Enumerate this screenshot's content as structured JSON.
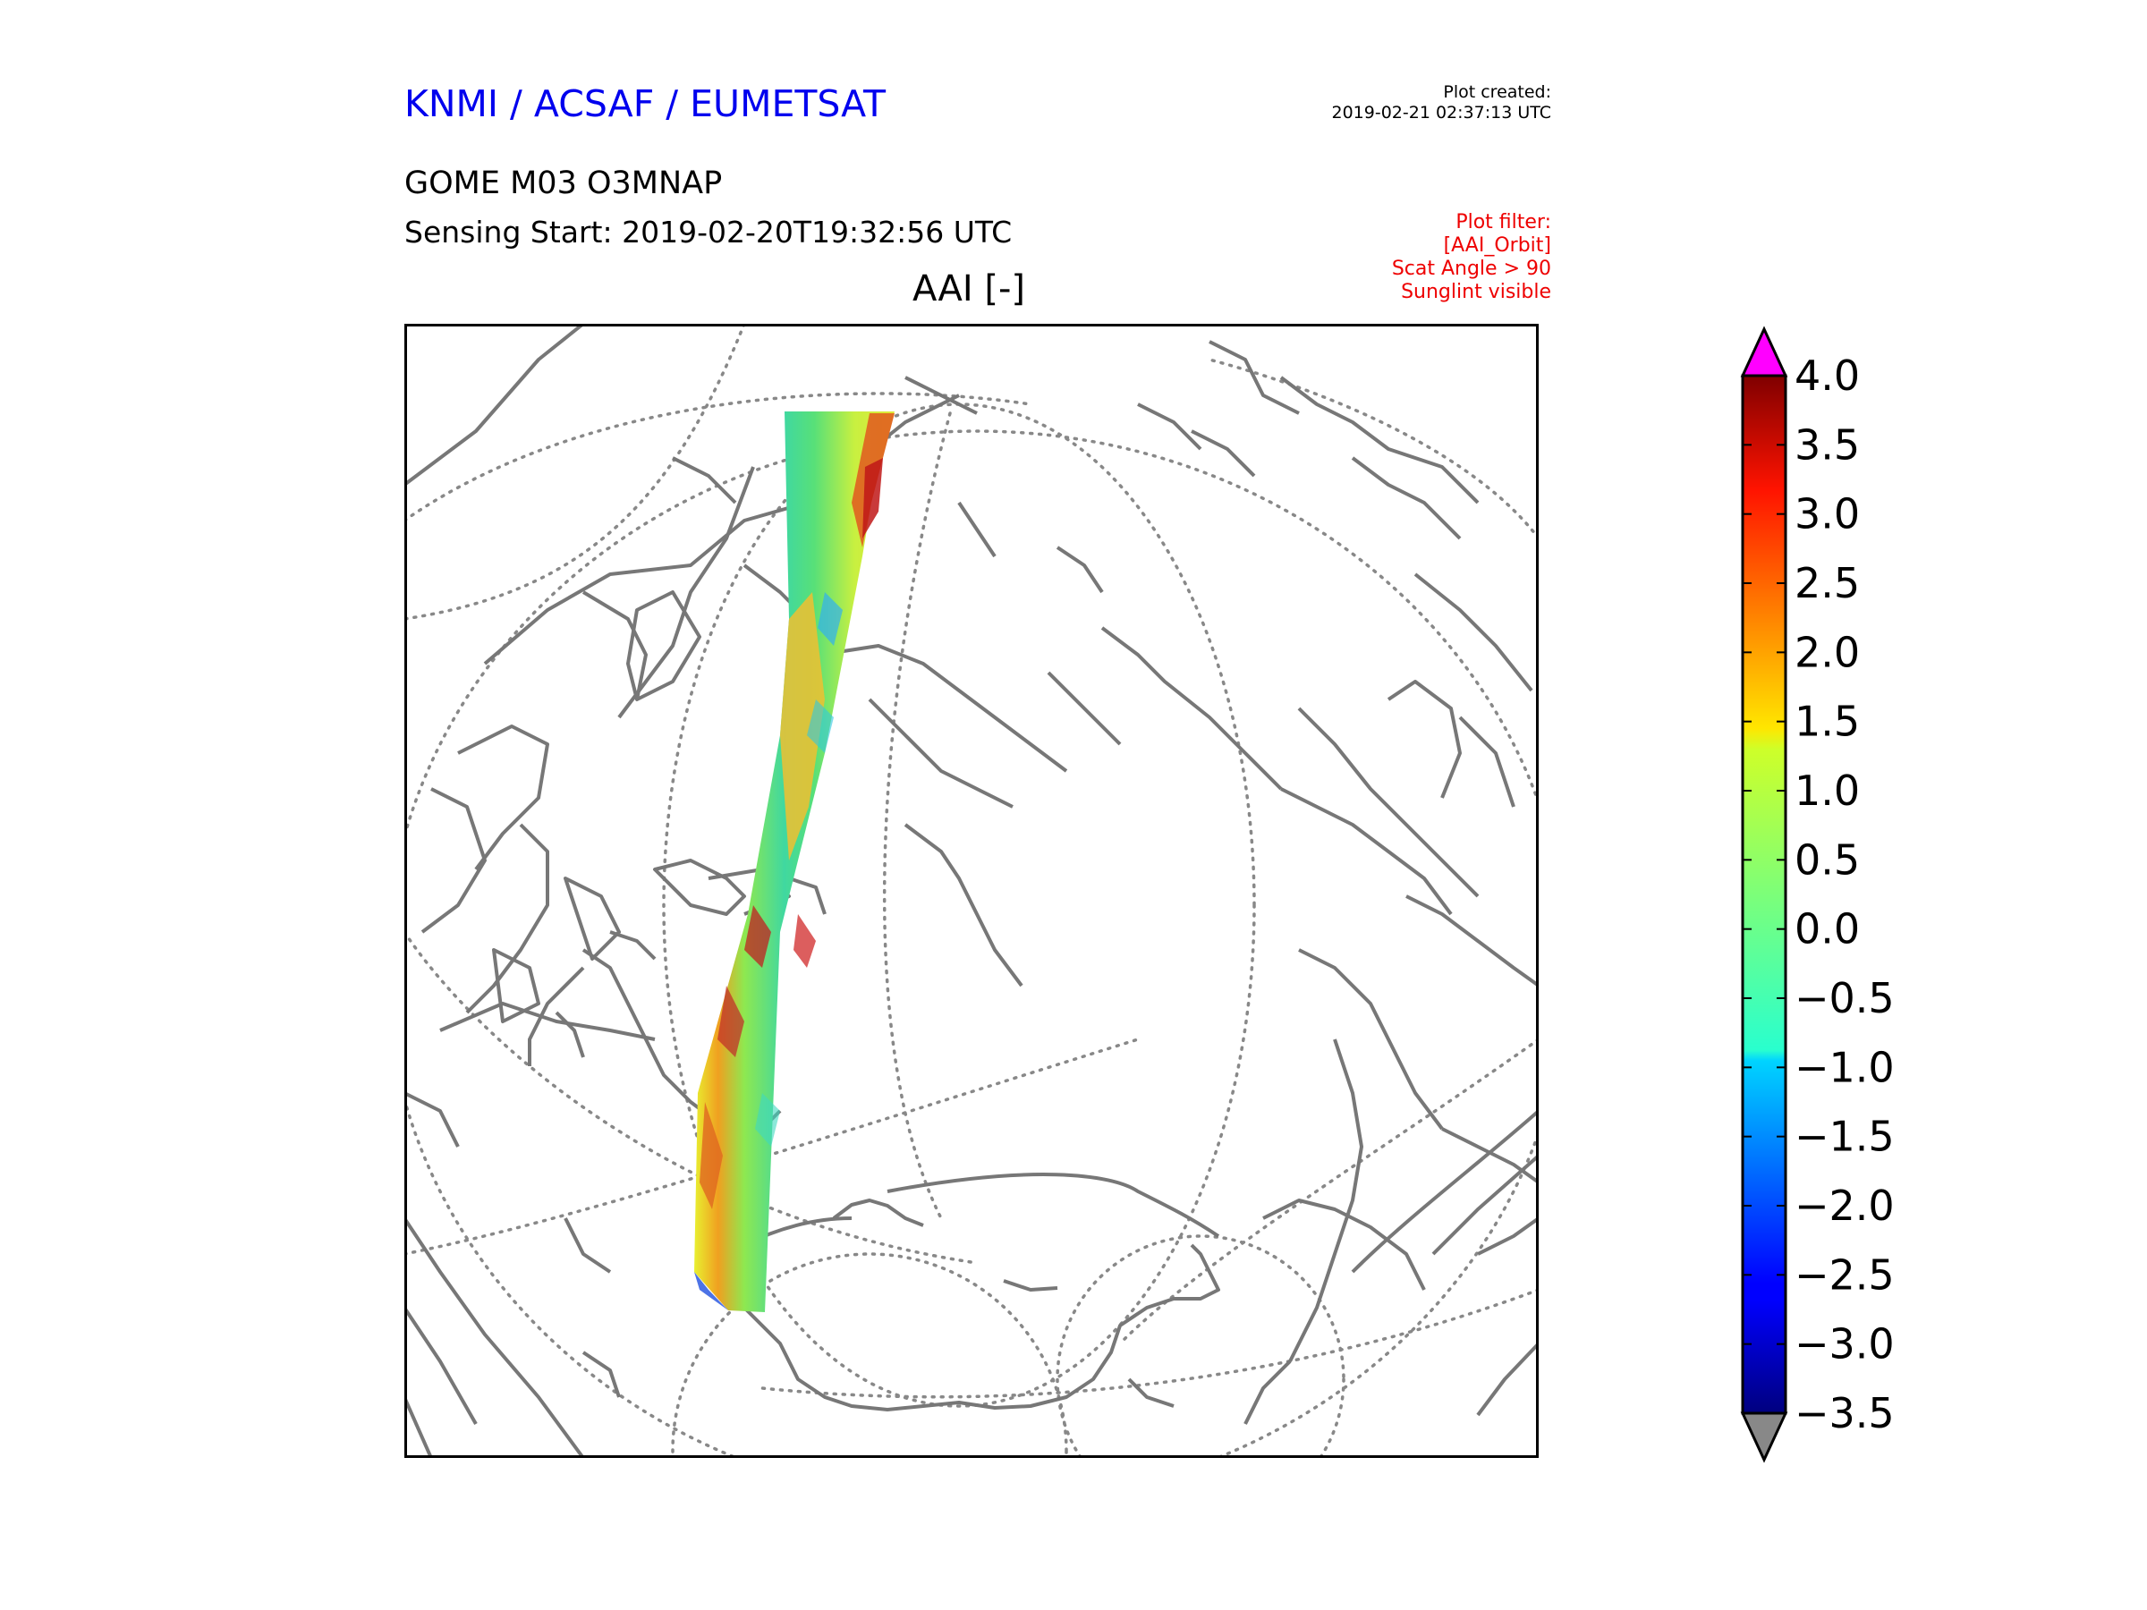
{
  "header": {
    "organization": "KNMI / ACSAF / EUMETSAT",
    "plot_created_label": "Plot created:",
    "plot_created_value": "2019-02-21 02:37:13 UTC",
    "product": "GOME M03 O3MNAP",
    "sensing_start": "Sensing Start: 2019-02-20T19:32:56 UTC",
    "filter_lines": [
      "Plot filter:",
      "[AAI_Orbit]",
      "Scat Angle > 90",
      "Sunglint visible"
    ]
  },
  "plot_title": "AAI [-]",
  "colors": {
    "org": "#0000ee",
    "filter": "#ee0000",
    "coast": "#777777",
    "grid": "#888888",
    "over": "#ff00ff",
    "under": "#888888"
  },
  "colorbar": {
    "min": -3.5,
    "max": 4.0,
    "ticks": [
      "4.0",
      "3.5",
      "3.0",
      "2.5",
      "2.0",
      "1.5",
      "1.0",
      "0.5",
      "0.0",
      "−0.5",
      "−1.0",
      "−1.5",
      "−2.0",
      "−2.5",
      "−3.0",
      "−3.5"
    ],
    "extend": "both",
    "colormap": "jet"
  }
}
